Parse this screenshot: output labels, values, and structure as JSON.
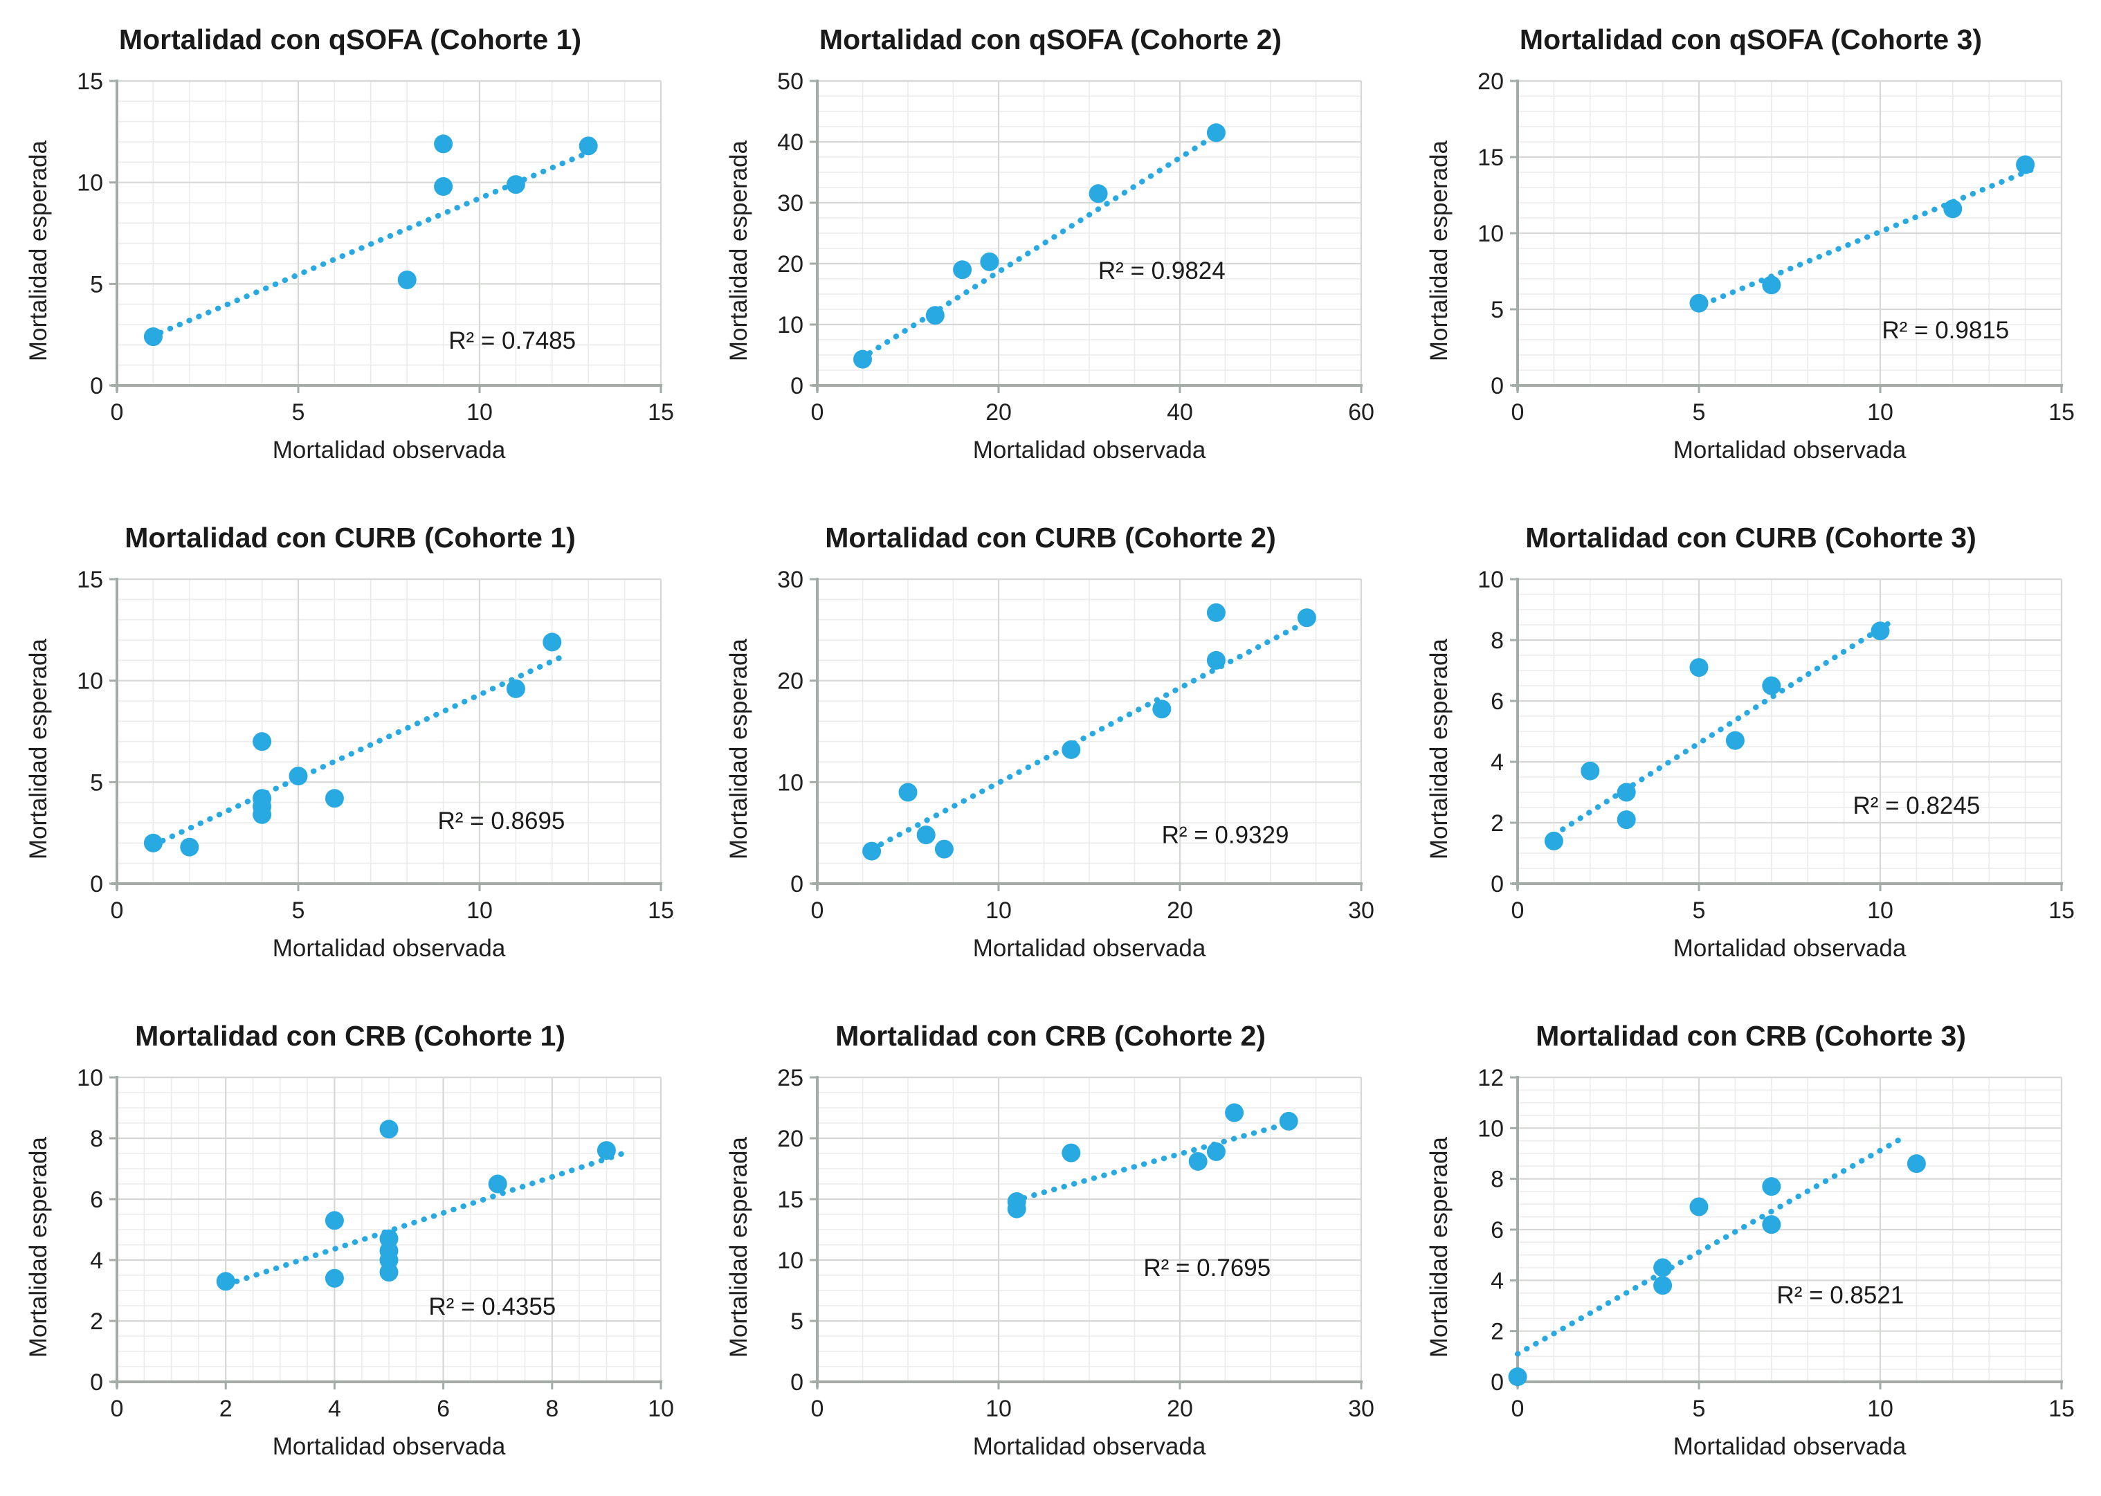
{
  "page": {
    "background": "#ffffff"
  },
  "colors": {
    "marker": "#29A9E1",
    "trend": "#29A9E1",
    "grid_minor": "#EBEBEB",
    "grid_major": "#D5D8D5",
    "axis": "#A3ACA6",
    "text": "#1F1F1F"
  },
  "chart_data": [
    {
      "type": "scatter",
      "title": "Mortalidad con qSOFA (Cohorte 1)",
      "xlabel": "Mortalidad observada",
      "ylabel": "Mortalidad esperada",
      "xlim": [
        0,
        15
      ],
      "ylim": [
        0,
        15
      ],
      "xticks": [
        0,
        5,
        10,
        15
      ],
      "yticks": [
        0,
        5,
        10,
        15
      ],
      "x_minor": 1,
      "y_minor": 1,
      "grid": true,
      "legend": "none",
      "points": [
        [
          1,
          2.4
        ],
        [
          8,
          5.2
        ],
        [
          9,
          11.9
        ],
        [
          9,
          9.8
        ],
        [
          11,
          9.9
        ],
        [
          13,
          11.8
        ]
      ],
      "trendline": {
        "style": "dotted",
        "from": [
          1.2,
          2.6
        ],
        "to": [
          13.3,
          11.7
        ]
      },
      "r2_label": "R² = 0.7485",
      "r2_pos": [
        10.9,
        1.8
      ]
    },
    {
      "type": "scatter",
      "title": "Mortalidad con qSOFA (Cohorte 2)",
      "xlabel": "Mortalidad observada",
      "ylabel": "Mortalidad esperada",
      "xlim": [
        0,
        60
      ],
      "ylim": [
        0,
        50
      ],
      "xticks": [
        0,
        20,
        40,
        60
      ],
      "yticks": [
        0,
        10,
        20,
        30,
        40,
        50
      ],
      "x_minor": 5,
      "y_minor": 2.5,
      "grid": true,
      "legend": "none",
      "points": [
        [
          5,
          4.3
        ],
        [
          13,
          11.5
        ],
        [
          16,
          19.0
        ],
        [
          19,
          20.3
        ],
        [
          31,
          31.5
        ],
        [
          44,
          41.5
        ]
      ],
      "trendline": {
        "style": "dotted",
        "from": [
          4.8,
          4.4
        ],
        "to": [
          44.5,
          41.6
        ]
      },
      "r2_label": "R² = 0.9824",
      "r2_pos": [
        38,
        17.5
      ]
    },
    {
      "type": "scatter",
      "title": "Mortalidad con qSOFA (Cohorte 3)",
      "xlabel": "Mortalidad observada",
      "ylabel": "Mortalidad esperada",
      "xlim": [
        0,
        15
      ],
      "ylim": [
        0,
        20
      ],
      "xticks": [
        0,
        5,
        10,
        15
      ],
      "yticks": [
        0,
        5,
        10,
        15,
        20
      ],
      "x_minor": 1,
      "y_minor": 1,
      "grid": true,
      "legend": "none",
      "points": [
        [
          5,
          5.4
        ],
        [
          7,
          6.6
        ],
        [
          12,
          11.6
        ],
        [
          14,
          14.5
        ]
      ],
      "trendline": {
        "style": "dotted",
        "from": [
          5.4,
          5.6
        ],
        "to": [
          14.2,
          14.2
        ]
      },
      "r2_label": "R² = 0.9815",
      "r2_pos": [
        11.8,
        3.1
      ]
    },
    {
      "type": "scatter",
      "title": "Mortalidad con CURB (Cohorte 1)",
      "xlabel": "Mortalidad observada",
      "ylabel": "Mortalidad esperada",
      "xlim": [
        0,
        15
      ],
      "ylim": [
        0,
        15
      ],
      "xticks": [
        0,
        5,
        10,
        15
      ],
      "yticks": [
        0,
        5,
        10,
        15
      ],
      "x_minor": 1,
      "y_minor": 1,
      "grid": true,
      "legend": "none",
      "points": [
        [
          1,
          2.0
        ],
        [
          2,
          1.8
        ],
        [
          4,
          7.0
        ],
        [
          4,
          4.2
        ],
        [
          4,
          3.8
        ],
        [
          4,
          3.4
        ],
        [
          5,
          5.3
        ],
        [
          6,
          4.2
        ],
        [
          11,
          9.6
        ],
        [
          12,
          11.9
        ]
      ],
      "trendline": {
        "style": "dotted",
        "from": [
          1,
          1.9
        ],
        "to": [
          12.3,
          11.2
        ]
      },
      "r2_label": "R² = 0.8695",
      "r2_pos": [
        10.6,
        2.7
      ]
    },
    {
      "type": "scatter",
      "title": "Mortalidad con CURB (Cohorte 2)",
      "xlabel": "Mortalidad observada",
      "ylabel": "Mortalidad esperada",
      "xlim": [
        0,
        30
      ],
      "ylim": [
        0,
        30
      ],
      "xticks": [
        0,
        10,
        20,
        30
      ],
      "yticks": [
        0,
        10,
        20,
        30
      ],
      "x_minor": 2.5,
      "y_minor": 2,
      "grid": true,
      "legend": "none",
      "points": [
        [
          3,
          3.2
        ],
        [
          5,
          9.0
        ],
        [
          6,
          4.8
        ],
        [
          7,
          3.4
        ],
        [
          14,
          13.2
        ],
        [
          19,
          17.2
        ],
        [
          22,
          26.7
        ],
        [
          22,
          22.0
        ],
        [
          27,
          26.2
        ]
      ],
      "trendline": {
        "style": "dotted",
        "from": [
          3,
          3.4
        ],
        "to": [
          27.3,
          26.1
        ]
      },
      "r2_label": "R² = 0.9329",
      "r2_pos": [
        22.5,
        4.0
      ]
    },
    {
      "type": "scatter",
      "title": "Mortalidad con CURB (Cohorte 3)",
      "xlabel": "Mortalidad observada",
      "ylabel": "Mortalidad esperada",
      "xlim": [
        0,
        15
      ],
      "ylim": [
        0,
        10
      ],
      "xticks": [
        0,
        5,
        10,
        15
      ],
      "yticks": [
        0,
        2,
        4,
        6,
        8,
        10
      ],
      "x_minor": 1,
      "y_minor": 0.5,
      "grid": true,
      "legend": "none",
      "points": [
        [
          1,
          1.4
        ],
        [
          2,
          3.7
        ],
        [
          3,
          3.0
        ],
        [
          3,
          2.1
        ],
        [
          5,
          7.1
        ],
        [
          6,
          4.7
        ],
        [
          7,
          6.5
        ],
        [
          10,
          8.3
        ]
      ],
      "trendline": {
        "style": "dotted",
        "from": [
          1,
          1.6
        ],
        "to": [
          10.3,
          8.6
        ]
      },
      "r2_label": "R² = 0.8245",
      "r2_pos": [
        11.0,
        2.3
      ]
    },
    {
      "type": "scatter",
      "title": "Mortalidad con CRB (Cohorte 1)",
      "xlabel": "Mortalidad observada",
      "ylabel": "Mortalidad esperada",
      "xlim": [
        0,
        10
      ],
      "ylim": [
        0,
        10
      ],
      "xticks": [
        0,
        2,
        4,
        6,
        8,
        10
      ],
      "yticks": [
        0,
        2,
        4,
        6,
        8,
        10
      ],
      "x_minor": 0.5,
      "y_minor": 0.5,
      "grid": true,
      "legend": "none",
      "points": [
        [
          2,
          3.3
        ],
        [
          4,
          5.3
        ],
        [
          4,
          3.4
        ],
        [
          5,
          8.3
        ],
        [
          5,
          4.7
        ],
        [
          5,
          4.3
        ],
        [
          5,
          4.0
        ],
        [
          5,
          3.6
        ],
        [
          7,
          6.5
        ],
        [
          9,
          7.6
        ]
      ],
      "trendline": {
        "style": "dotted",
        "from": [
          2.2,
          3.3
        ],
        "to": [
          9.3,
          7.5
        ]
      },
      "r2_label": "R² = 0.4355",
      "r2_pos": [
        6.9,
        2.2
      ]
    },
    {
      "type": "scatter",
      "title": "Mortalidad con CRB (Cohorte 2)",
      "xlabel": "Mortalidad observada",
      "ylabel": "Mortalidad esperada",
      "xlim": [
        0,
        30
      ],
      "ylim": [
        0,
        25
      ],
      "xticks": [
        0,
        10,
        20,
        30
      ],
      "yticks": [
        0,
        5,
        10,
        15,
        20,
        25
      ],
      "x_minor": 2.5,
      "y_minor": 1.25,
      "grid": true,
      "legend": "none",
      "points": [
        [
          11,
          14.8
        ],
        [
          11,
          14.2
        ],
        [
          14,
          18.8
        ],
        [
          21,
          18.1
        ],
        [
          22,
          18.9
        ],
        [
          23,
          22.1
        ],
        [
          26,
          21.4
        ]
      ],
      "trendline": {
        "style": "dotted",
        "from": [
          11.4,
          15.1
        ],
        "to": [
          26.4,
          21.4
        ]
      },
      "r2_label": "R² = 0.7695",
      "r2_pos": [
        21.5,
        8.7
      ]
    },
    {
      "type": "scatter",
      "title": "Mortalidad con CRB (Cohorte 3)",
      "xlabel": "Mortalidad observada",
      "ylabel": "Mortalidad esperada",
      "xlim": [
        0,
        15
      ],
      "ylim": [
        0,
        12
      ],
      "xticks": [
        0,
        5,
        10,
        15
      ],
      "yticks": [
        0,
        2,
        4,
        6,
        8,
        10,
        12
      ],
      "x_minor": 1,
      "y_minor": 0.5,
      "grid": true,
      "legend": "none",
      "points": [
        [
          0,
          0.2
        ],
        [
          4,
          4.5
        ],
        [
          4,
          3.8
        ],
        [
          5,
          6.9
        ],
        [
          7,
          7.7
        ],
        [
          7,
          6.2
        ],
        [
          11,
          8.6
        ]
      ],
      "trendline": {
        "style": "dotted",
        "from": [
          0,
          1.1
        ],
        "to": [
          10.6,
          9.6
        ]
      },
      "r2_label": "R² = 0.8521",
      "r2_pos": [
        8.9,
        3.1
      ]
    }
  ]
}
